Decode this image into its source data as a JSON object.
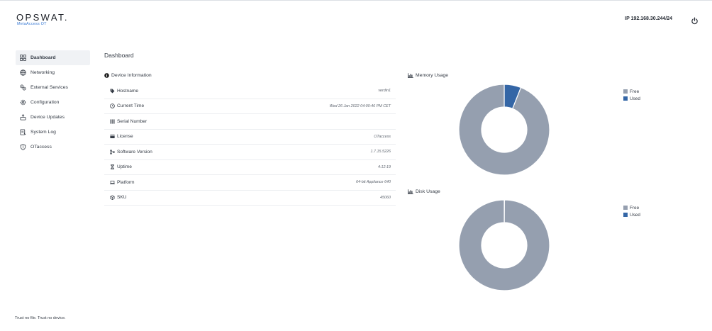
{
  "header": {
    "logo": "OPSWAT.",
    "product": "MetaAccess OT",
    "ip": "IP 192.168.30.244/24",
    "power_icon": "power-icon"
  },
  "sidebar": {
    "items": [
      {
        "label": "Dashboard",
        "icon": "grid-icon",
        "active": true
      },
      {
        "label": "Networking",
        "icon": "globe-icon",
        "active": false
      },
      {
        "label": "External Services",
        "icon": "services-icon",
        "active": false
      },
      {
        "label": "Configuration",
        "icon": "gear-icon",
        "active": false
      },
      {
        "label": "Device Updates",
        "icon": "update-icon",
        "active": false
      },
      {
        "label": "System Log",
        "icon": "log-icon",
        "active": false
      },
      {
        "label": "OTaccess",
        "icon": "shield-icon",
        "active": false
      }
    ]
  },
  "main": {
    "title": "Dashboard",
    "device_info": {
      "title": "Device Information",
      "rows": [
        {
          "label": "Hostname",
          "value": "verdin1",
          "icon": "tag-icon"
        },
        {
          "label": "Current Time",
          "value": "Wed 26 Jan 2022 04:00:46 PM CET",
          "icon": "clock-icon"
        },
        {
          "label": "Serial Number",
          "value": "",
          "icon": "barcode-icon"
        },
        {
          "label": "License",
          "value": "OTaccess",
          "icon": "card-icon"
        },
        {
          "label": "Software Version",
          "value": "1.7.15.5226",
          "icon": "branch-icon"
        },
        {
          "label": "Uptime",
          "value": "4:12:19",
          "icon": "hourglass-icon"
        },
        {
          "label": "Platform",
          "value": "64-bit Appliance 640",
          "icon": "laptop-icon"
        },
        {
          "label": "SKU",
          "value": "45060",
          "icon": "box-icon"
        }
      ]
    }
  },
  "charts": {
    "memory": {
      "title": "Memory Usage",
      "legend": [
        "Free",
        "Used"
      ]
    },
    "disk": {
      "title": "Disk Usage",
      "legend": [
        "Free",
        "Used"
      ]
    }
  },
  "colors": {
    "free": "#959faf",
    "used": "#3466a6"
  },
  "chart_data": [
    {
      "type": "pie",
      "title": "Memory Usage",
      "categories": [
        "Free",
        "Used"
      ],
      "values": [
        94,
        6
      ]
    },
    {
      "type": "pie",
      "title": "Disk Usage",
      "categories": [
        "Free",
        "Used"
      ],
      "values": [
        99.9,
        0.1
      ]
    }
  ],
  "footer": {
    "text": "Trust no file. Trust no device."
  }
}
